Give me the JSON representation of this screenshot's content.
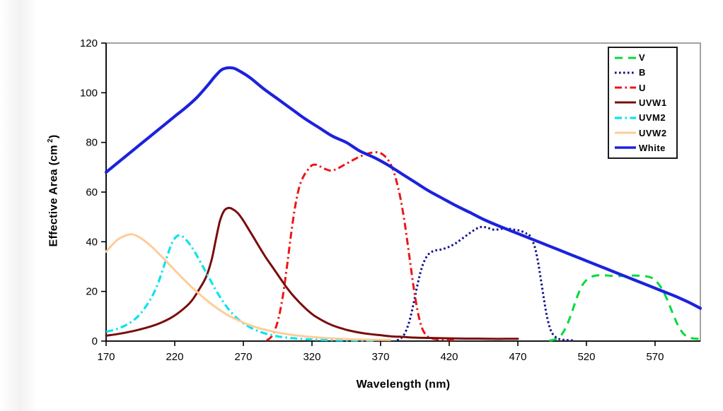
{
  "page": {
    "background": "#ffffff"
  },
  "chart_data": {
    "type": "line",
    "title": "",
    "xlabel": "Wavelength (nm)",
    "ylabel": "Effective Area (cm²)",
    "ylabel_prefix": "Effective Area (cm",
    "ylabel_sup": "2",
    "ylabel_suffix": ")",
    "xlim": [
      170,
      603
    ],
    "ylim": [
      0,
      120
    ],
    "xticks": [
      170,
      220,
      270,
      320,
      370,
      420,
      470,
      520,
      570
    ],
    "yticks": [
      0,
      20,
      40,
      60,
      80,
      100,
      120
    ],
    "grid": false,
    "legend_position": "top-right",
    "plot_border_color": "#8c8c8c",
    "axis_color": "#000000",
    "series": [
      {
        "name": "V",
        "color": "#00da3c",
        "style": "dash",
        "width": 3,
        "points": [
          [
            493,
            0.2
          ],
          [
            497,
            0.7
          ],
          [
            501,
            2
          ],
          [
            505,
            5.5
          ],
          [
            509,
            11
          ],
          [
            513,
            17.5
          ],
          [
            517,
            22.5
          ],
          [
            521,
            25
          ],
          [
            526,
            26.3
          ],
          [
            532,
            26.5
          ],
          [
            538,
            26.3
          ],
          [
            544,
            26.2
          ],
          [
            550,
            26.3
          ],
          [
            556,
            26.4
          ],
          [
            562,
            26.2
          ],
          [
            567,
            25.6
          ],
          [
            571,
            24
          ],
          [
            575,
            21
          ],
          [
            579,
            16.5
          ],
          [
            583,
            11
          ],
          [
            587,
            6
          ],
          [
            591,
            2.8
          ],
          [
            595,
            1.4
          ],
          [
            599,
            1
          ],
          [
            603,
            0.9
          ]
        ]
      },
      {
        "name": "B",
        "color": "#10108c",
        "style": "dot",
        "width": 3,
        "points": [
          [
            382,
            0.3
          ],
          [
            385,
            1.2
          ],
          [
            388,
            3.5
          ],
          [
            391,
            8
          ],
          [
            394,
            15
          ],
          [
            397,
            23
          ],
          [
            400,
            29.5
          ],
          [
            403,
            33.5
          ],
          [
            406,
            35.5
          ],
          [
            410,
            36.5
          ],
          [
            415,
            37
          ],
          [
            420,
            38
          ],
          [
            425,
            39.5
          ],
          [
            430,
            41.5
          ],
          [
            435,
            43.5
          ],
          [
            440,
            45.3
          ],
          [
            444,
            46
          ],
          [
            448,
            45.6
          ],
          [
            452,
            44.9
          ],
          [
            456,
            45
          ],
          [
            460,
            45.4
          ],
          [
            464,
            45.2
          ],
          [
            468,
            44.8
          ],
          [
            472,
            44.4
          ],
          [
            476,
            43.4
          ],
          [
            478,
            43
          ],
          [
            481,
            40
          ],
          [
            483,
            36.5
          ],
          [
            485,
            31
          ],
          [
            487,
            24
          ],
          [
            489,
            17
          ],
          [
            491,
            10.5
          ],
          [
            493,
            6
          ],
          [
            495,
            3.2
          ],
          [
            498,
            1.4
          ],
          [
            501,
            0.7
          ],
          [
            505,
            0.4
          ],
          [
            510,
            0.3
          ]
        ]
      },
      {
        "name": "U",
        "color": "#ee1414",
        "style": "dashdot",
        "width": 3,
        "points": [
          [
            287,
            0.3
          ],
          [
            290,
            1.5
          ],
          [
            293,
            4.5
          ],
          [
            296,
            10
          ],
          [
            299,
            19
          ],
          [
            302,
            31
          ],
          [
            305,
            44
          ],
          [
            308,
            55
          ],
          [
            311,
            62.5
          ],
          [
            314,
            66.5
          ],
          [
            317,
            69
          ],
          [
            320,
            70.8
          ],
          [
            323,
            71
          ],
          [
            326,
            70.3
          ],
          [
            330,
            69.2
          ],
          [
            334,
            68.6
          ],
          [
            338,
            69.3
          ],
          [
            343,
            70.8
          ],
          [
            348,
            72.3
          ],
          [
            353,
            73.8
          ],
          [
            358,
            75
          ],
          [
            363,
            75.8
          ],
          [
            368,
            76
          ],
          [
            372,
            75
          ],
          [
            376,
            72.5
          ],
          [
            379,
            69
          ],
          [
            382,
            63.5
          ],
          [
            385,
            56
          ],
          [
            388,
            46
          ],
          [
            391,
            34
          ],
          [
            394,
            22
          ],
          [
            397,
            12
          ],
          [
            400,
            5.5
          ],
          [
            403,
            2.5
          ],
          [
            406,
            1.3
          ],
          [
            410,
            0.8
          ],
          [
            415,
            0.6
          ],
          [
            420,
            0.5
          ],
          [
            425,
            0.4
          ]
        ]
      },
      {
        "name": "UVW1",
        "color": "#7a0c0c",
        "style": "solid",
        "width": 3,
        "points": [
          [
            170,
            2.2
          ],
          [
            178,
            2.8
          ],
          [
            186,
            3.6
          ],
          [
            194,
            4.6
          ],
          [
            202,
            5.8
          ],
          [
            210,
            7.4
          ],
          [
            218,
            9.6
          ],
          [
            226,
            12.8
          ],
          [
            232,
            16
          ],
          [
            238,
            21
          ],
          [
            243,
            26
          ],
          [
            247,
            33
          ],
          [
            250,
            41
          ],
          [
            253,
            48.5
          ],
          [
            256,
            52.5
          ],
          [
            259,
            53.6
          ],
          [
            262,
            53.2
          ],
          [
            266,
            51.5
          ],
          [
            270,
            48.5
          ],
          [
            275,
            44
          ],
          [
            281,
            38.5
          ],
          [
            286,
            34
          ],
          [
            291,
            30
          ],
          [
            296,
            26
          ],
          [
            301,
            22
          ],
          [
            306,
            18.5
          ],
          [
            311,
            15.5
          ],
          [
            316,
            12.8
          ],
          [
            321,
            10.5
          ],
          [
            326,
            8.8
          ],
          [
            331,
            7.3
          ],
          [
            336,
            6.1
          ],
          [
            341,
            5.2
          ],
          [
            346,
            4.4
          ],
          [
            351,
            3.8
          ],
          [
            356,
            3.3
          ],
          [
            361,
            2.9
          ],
          [
            366,
            2.6
          ],
          [
            371,
            2.3
          ],
          [
            376,
            2
          ],
          [
            381,
            1.8
          ],
          [
            386,
            1.7
          ],
          [
            391,
            1.5
          ],
          [
            396,
            1.4
          ],
          [
            401,
            1.3
          ],
          [
            411,
            1.2
          ],
          [
            421,
            1.1
          ],
          [
            431,
            1
          ],
          [
            441,
            1
          ],
          [
            451,
            0.9
          ],
          [
            461,
            0.9
          ],
          [
            470,
            0.9
          ]
        ]
      },
      {
        "name": "UVM2",
        "color": "#0ee2ee",
        "style": "dashdot",
        "width": 3.2,
        "points": [
          [
            170,
            3.8
          ],
          [
            175,
            4.4
          ],
          [
            180,
            5.3
          ],
          [
            185,
            6.6
          ],
          [
            190,
            8.4
          ],
          [
            195,
            11
          ],
          [
            200,
            14.8
          ],
          [
            204,
            18.5
          ],
          [
            208,
            23.5
          ],
          [
            212,
            30
          ],
          [
            215,
            35
          ],
          [
            218,
            39.5
          ],
          [
            221,
            42
          ],
          [
            224,
            42.6
          ],
          [
            227,
            41.5
          ],
          [
            231,
            39
          ],
          [
            235,
            35.5
          ],
          [
            240,
            30.5
          ],
          [
            245,
            25.5
          ],
          [
            250,
            20.5
          ],
          [
            255,
            16
          ],
          [
            260,
            12.3
          ],
          [
            265,
            9.4
          ],
          [
            270,
            7.2
          ],
          [
            275,
            5.5
          ],
          [
            280,
            4.2
          ],
          [
            285,
            3.2
          ],
          [
            290,
            2.5
          ],
          [
            295,
            1.9
          ],
          [
            300,
            1.5
          ],
          [
            307,
            1.1
          ],
          [
            314,
            0.8
          ],
          [
            321,
            0.6
          ],
          [
            330,
            0.45
          ],
          [
            340,
            0.35
          ],
          [
            352,
            0.28
          ],
          [
            365,
            0.22
          ]
        ]
      },
      {
        "name": "UVW2",
        "color": "#ffcc99",
        "style": "solid",
        "width": 3,
        "points": [
          [
            170,
            36
          ],
          [
            174,
            38.5
          ],
          [
            178,
            40.7
          ],
          [
            182,
            42
          ],
          [
            186,
            42.8
          ],
          [
            189,
            43
          ],
          [
            193,
            42.2
          ],
          [
            197,
            40.8
          ],
          [
            202,
            38.6
          ],
          [
            207,
            36
          ],
          [
            212,
            33.2
          ],
          [
            217,
            30.3
          ],
          [
            222,
            27.4
          ],
          [
            227,
            24.6
          ],
          [
            232,
            21.9
          ],
          [
            237,
            19.4
          ],
          [
            242,
            17
          ],
          [
            247,
            14.8
          ],
          [
            252,
            12.8
          ],
          [
            257,
            11
          ],
          [
            262,
            9.5
          ],
          [
            267,
            8.2
          ],
          [
            272,
            7
          ],
          [
            277,
            6
          ],
          [
            282,
            5.1
          ],
          [
            287,
            4.4
          ],
          [
            292,
            3.8
          ],
          [
            297,
            3.2
          ],
          [
            302,
            2.8
          ],
          [
            307,
            2.4
          ],
          [
            312,
            2.1
          ],
          [
            317,
            1.8
          ],
          [
            324,
            1.5
          ],
          [
            331,
            1.2
          ],
          [
            338,
            1
          ],
          [
            346,
            0.8
          ],
          [
            354,
            0.65
          ],
          [
            362,
            0.55
          ],
          [
            370,
            0.5
          ],
          [
            377,
            0.45
          ]
        ]
      },
      {
        "name": "White",
        "color": "#1c22dd",
        "style": "solid",
        "width": 4.2,
        "points": [
          [
            170,
            68
          ],
          [
            180,
            72.5
          ],
          [
            190,
            77
          ],
          [
            200,
            81.5
          ],
          [
            210,
            86
          ],
          [
            220,
            90.5
          ],
          [
            228,
            94
          ],
          [
            236,
            98
          ],
          [
            244,
            103
          ],
          [
            250,
            107
          ],
          [
            255,
            109.5
          ],
          [
            262,
            110
          ],
          [
            268,
            108.5
          ],
          [
            275,
            106
          ],
          [
            285,
            101.5
          ],
          [
            295,
            97.5
          ],
          [
            305,
            93.5
          ],
          [
            315,
            89.5
          ],
          [
            325,
            86
          ],
          [
            335,
            82.5
          ],
          [
            345,
            80
          ],
          [
            355,
            76.5
          ],
          [
            365,
            74
          ],
          [
            375,
            71
          ],
          [
            385,
            67.5
          ],
          [
            395,
            64
          ],
          [
            405,
            60.5
          ],
          [
            415,
            57.5
          ],
          [
            425,
            54.5
          ],
          [
            435,
            51.8
          ],
          [
            445,
            49
          ],
          [
            455,
            46.6
          ],
          [
            465,
            44.4
          ],
          [
            475,
            42.2
          ],
          [
            485,
            40
          ],
          [
            495,
            37.8
          ],
          [
            505,
            35.6
          ],
          [
            515,
            33.4
          ],
          [
            525,
            31.2
          ],
          [
            535,
            29
          ],
          [
            545,
            26.8
          ],
          [
            555,
            24.6
          ],
          [
            565,
            22.4
          ],
          [
            575,
            20.2
          ],
          [
            585,
            18
          ],
          [
            595,
            15.5
          ],
          [
            603,
            13.2
          ]
        ]
      }
    ]
  }
}
